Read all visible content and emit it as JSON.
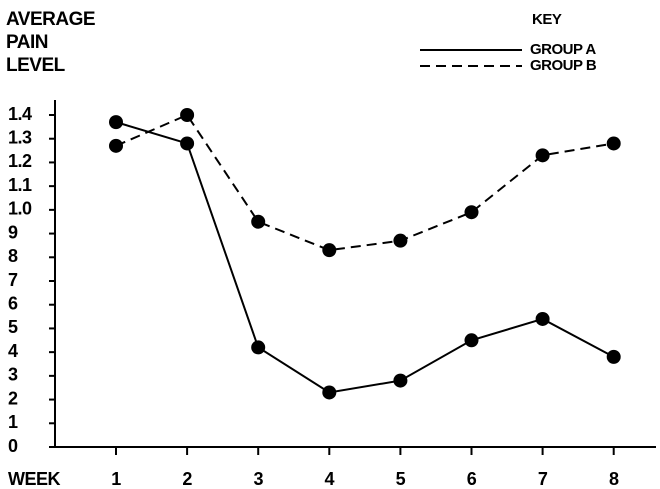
{
  "chart_data": {
    "type": "line",
    "y_label": "AVERAGE PAIN LEVEL",
    "x_label": "WEEK",
    "legend_title": "KEY",
    "legend": "top-right",
    "categories": [
      "1",
      "2",
      "3",
      "4",
      "5",
      "6",
      "7",
      "8"
    ],
    "series": [
      {
        "name": "GROUP A",
        "color": "#000000",
        "dash": "solid",
        "values": [
          1.37,
          1.28,
          0.42,
          0.23,
          0.28,
          0.45,
          0.54,
          0.38
        ]
      },
      {
        "name": "GROUP B",
        "color": "#000000",
        "dash": "dashed",
        "values": [
          1.27,
          1.4,
          0.95,
          0.83,
          0.87,
          0.99,
          1.23,
          1.28
        ]
      }
    ],
    "ylim": [
      0,
      1.4
    ],
    "yticks": [
      0,
      {
        "value": 0.1,
        "label": "1"
      },
      {
        "value": 0.2,
        "label": "2"
      },
      {
        "value": 0.3,
        "label": "3"
      },
      {
        "value": 0.4,
        "label": "4"
      },
      {
        "value": 0.5,
        "label": "5"
      },
      {
        "value": 0.6,
        "label": "6"
      },
      {
        "value": 0.7,
        "label": "7"
      },
      {
        "value": 0.8,
        "label": "8"
      },
      {
        "value": 0.9,
        "label": "9"
      },
      {
        "value": 1,
        "label": "1.0"
      },
      1.1,
      1.2,
      1.3,
      1.4
    ],
    "grid": false
  }
}
